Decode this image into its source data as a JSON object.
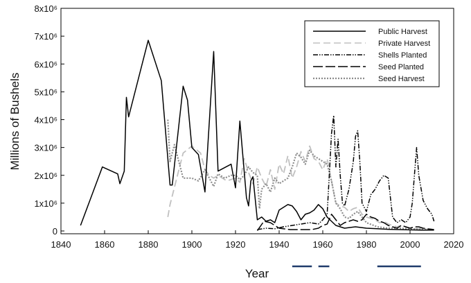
{
  "chart_data": {
    "type": "line",
    "title": "",
    "xlabel": "Year",
    "ylabel": "Millions of Bushels",
    "xlim": [
      1840,
      2020
    ],
    "ylim": [
      0,
      8000000
    ],
    "x_ticks": [
      "1840",
      "1860",
      "1880",
      "1900",
      "1920",
      "1940",
      "1960",
      "1980",
      "2000",
      "2020"
    ],
    "x_tick_values": [
      1840,
      1860,
      1880,
      1900,
      1920,
      1940,
      1960,
      1980,
      2000,
      2020
    ],
    "y_ticks": [
      "0",
      "1x10⁶",
      "2x10⁶",
      "3x10⁶",
      "4x10⁶",
      "5x10⁶",
      "6x10⁶",
      "7x10⁶",
      "8x10⁶"
    ],
    "y_tick_values": [
      0,
      1000000,
      2000000,
      3000000,
      4000000,
      5000000,
      6000000,
      7000000,
      8000000
    ],
    "legend_position": "top-right",
    "series": [
      {
        "name": "Public Harvest",
        "color": "#000000",
        "style": "solid",
        "x": [
          1849,
          1859,
          1866,
          1867,
          1869,
          1870,
          1871,
          1880,
          1886,
          1890,
          1891,
          1896,
          1898,
          1900,
          1903,
          1906,
          1910,
          1912,
          1918,
          1920,
          1922,
          1925,
          1926,
          1927,
          1928,
          1930,
          1932,
          1934,
          1936,
          1938,
          1940,
          1942,
          1944,
          1946,
          1948,
          1950,
          1952,
          1954,
          1956,
          1958,
          1960,
          1962,
          1964,
          1966,
          1968,
          1970,
          1975,
          1980,
          1985,
          1990,
          1995,
          2000,
          2005,
          2011
        ],
        "y": [
          200000,
          2300000,
          2050000,
          1700000,
          2150000,
          4800000,
          4100000,
          6850000,
          5400000,
          1650000,
          1650000,
          5200000,
          4700000,
          3000000,
          2750000,
          1400000,
          6450000,
          2150000,
          2400000,
          1550000,
          3950000,
          1200000,
          900000,
          1800000,
          1950000,
          400000,
          500000,
          350000,
          400000,
          300000,
          750000,
          850000,
          950000,
          900000,
          700000,
          400000,
          600000,
          650000,
          750000,
          950000,
          800000,
          500000,
          350000,
          200000,
          150000,
          100000,
          150000,
          100000,
          80000,
          60000,
          50000,
          40000,
          30000,
          30000
        ]
      },
      {
        "name": "Private Harvest",
        "color": "#c0c0c0",
        "style": "dashed",
        "x": [
          1889,
          1890,
          1896,
          1900,
          1904,
          1906,
          1908,
          1910,
          1912,
          1916,
          1920,
          1922,
          1924,
          1926,
          1928,
          1930,
          1932,
          1934,
          1936,
          1938,
          1940,
          1942,
          1944,
          1946,
          1948,
          1950,
          1952,
          1954,
          1956,
          1958,
          1960,
          1962,
          1964,
          1966,
          1968,
          1970,
          1972,
          1974,
          1976,
          1978,
          1980,
          1982,
          1984,
          1986,
          1988,
          1990,
          1992,
          1994,
          1996,
          1998,
          2000,
          2005,
          2011
        ],
        "y": [
          500000,
          950000,
          2800000,
          3050000,
          2800000,
          2200000,
          2000000,
          1900000,
          2000000,
          1800000,
          1900000,
          1750000,
          2600000,
          2100000,
          1700000,
          2300000,
          1900000,
          1600000,
          2200000,
          1500000,
          2400000,
          2050000,
          2700000,
          1900000,
          2300000,
          2850000,
          2500000,
          3050000,
          2600000,
          2500000,
          2200000,
          2600000,
          1800000,
          1000000,
          900000,
          850000,
          700000,
          800000,
          850000,
          600000,
          500000,
          450000,
          400000,
          300000,
          350000,
          250000,
          200000,
          150000,
          200000,
          150000,
          100000,
          80000,
          50000
        ]
      },
      {
        "name": "Shells Planted",
        "color": "#000000",
        "style": "dash-dot-dot",
        "x": [
          1930,
          1934,
          1938,
          1942,
          1946,
          1950,
          1954,
          1958,
          1960,
          1962,
          1963,
          1964,
          1965,
          1966,
          1967,
          1968,
          1969,
          1970,
          1972,
          1974,
          1975,
          1976,
          1977,
          1978,
          1980,
          1982,
          1984,
          1986,
          1988,
          1990,
          1992,
          1994,
          1996,
          1998,
          2000,
          2001,
          2002,
          2003,
          2004,
          2006,
          2008,
          2010,
          2011
        ],
        "y": [
          50000,
          100000,
          80000,
          150000,
          200000,
          250000,
          300000,
          250000,
          400000,
          600000,
          2000000,
          3500000,
          4150000,
          2300000,
          3300000,
          2000000,
          1000000,
          900000,
          1500000,
          2500000,
          3400000,
          3600000,
          2500000,
          1000000,
          700000,
          1300000,
          1500000,
          1800000,
          2000000,
          1900000,
          500000,
          300000,
          400000,
          300000,
          500000,
          1000000,
          2000000,
          3000000,
          2000000,
          1100000,
          800000,
          600000,
          350000
        ]
      },
      {
        "name": "Seed Planted",
        "color": "#000000",
        "style": "long-dash",
        "x": [
          1930,
          1933,
          1936,
          1940,
          1945,
          1950,
          1955,
          1958,
          1960,
          1962,
          1964,
          1966,
          1968,
          1970,
          1972,
          1974,
          1976,
          1978,
          1980,
          1982,
          1984,
          1986,
          1988,
          1990,
          1992,
          1994,
          1996,
          1998,
          2000,
          2002,
          2004,
          2006,
          2008,
          2011
        ],
        "y": [
          10000,
          350000,
          300000,
          100000,
          50000,
          50000,
          50000,
          100000,
          200000,
          250000,
          600000,
          400000,
          200000,
          300000,
          350000,
          400000,
          350000,
          400000,
          600000,
          500000,
          450000,
          350000,
          300000,
          200000,
          150000,
          100000,
          200000,
          150000,
          100000,
          150000,
          150000,
          100000,
          80000,
          50000
        ]
      },
      {
        "name": "Seed Harvest",
        "color": "#8c8c8c",
        "style": "dotted",
        "x": [
          1889,
          1890,
          1892,
          1894,
          1896,
          1900,
          1903,
          1906,
          1908,
          1910,
          1912,
          1915,
          1918,
          1920,
          1922,
          1924,
          1926,
          1928,
          1930,
          1931,
          1932,
          1934,
          1936,
          1938,
          1940,
          1942,
          1944,
          1946,
          1948,
          1950,
          1952,
          1954,
          1956,
          1958,
          1960,
          1962,
          1964,
          1966,
          1968,
          1970,
          1972,
          1974,
          1976,
          1978,
          1980,
          1985,
          1990,
          1995,
          2000,
          2005,
          2011
        ],
        "y": [
          4000000,
          2500000,
          3100000,
          2500000,
          1900000,
          1900000,
          1800000,
          2200000,
          1900000,
          1600000,
          2050000,
          1900000,
          2000000,
          2000000,
          1850000,
          2000000,
          2300000,
          2100000,
          2000000,
          800000,
          1500000,
          1700000,
          1400000,
          1900000,
          1700000,
          1800000,
          1900000,
          2300000,
          2800000,
          2650000,
          2400000,
          2900000,
          2700000,
          2600000,
          2500000,
          2400000,
          1800000,
          1000000,
          800000,
          500000,
          450000,
          600000,
          700000,
          500000,
          300000,
          150000,
          100000,
          100000,
          80000,
          60000,
          40000
        ]
      }
    ],
    "bottom_marks": [
      {
        "x": [
          1946,
          1955
        ],
        "color": "#1f3a6b"
      },
      {
        "x": [
          1958,
          1963
        ],
        "color": "#1f3a6b"
      },
      {
        "x": [
          1985,
          2005
        ],
        "color": "#1f3a6b"
      }
    ]
  }
}
